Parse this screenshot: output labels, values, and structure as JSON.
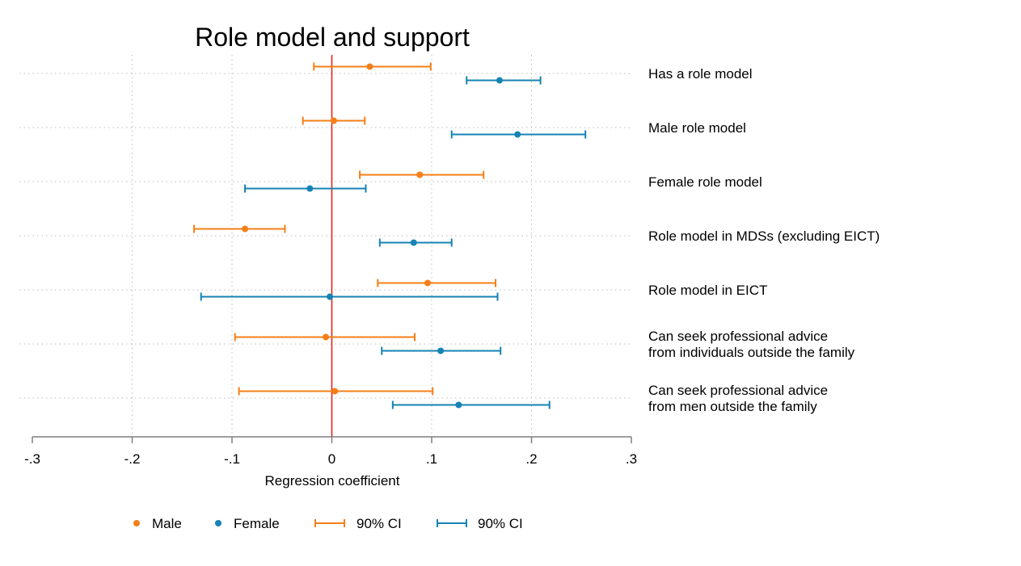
{
  "chart_data": {
    "type": "coefficient_plot",
    "title": "Role model and support",
    "xlabel": "Regression coefficient",
    "xlim": [
      -0.3,
      0.3
    ],
    "xticks": [
      -0.3,
      -0.2,
      -0.1,
      0,
      0.1,
      0.2,
      0.3
    ],
    "xtick_labels": [
      "-.3",
      "-.2",
      "-.1",
      "0",
      ".1",
      ".2",
      ".3"
    ],
    "reference_line": {
      "x": 0,
      "color": "#e8190e"
    },
    "grid": true,
    "legend_position": "bottom",
    "categories": [
      [
        "Has a role model"
      ],
      [
        "Male role model"
      ],
      [
        "Female role model"
      ],
      [
        "Role model in MDSs (excluding EICT)"
      ],
      [
        "Role model in EICT"
      ],
      [
        "Can seek professional advice",
        "from individuals outside the family"
      ],
      [
        "Can seek professional advice",
        "from men outside the family"
      ]
    ],
    "series": [
      {
        "name": "Male",
        "color": "#f57f17",
        "ci_label": "90% CI",
        "estimates": [
          0.038,
          0.002,
          0.088,
          -0.087,
          0.096,
          -0.006,
          0.003
        ],
        "ci_low": [
          -0.018,
          -0.029,
          0.028,
          -0.138,
          0.046,
          -0.097,
          -0.093
        ],
        "ci_high": [
          0.099,
          0.033,
          0.152,
          -0.047,
          0.164,
          0.083,
          0.101
        ]
      },
      {
        "name": "Female",
        "color": "#1683b4",
        "ci_label": "90% CI",
        "estimates": [
          0.168,
          0.186,
          -0.022,
          0.082,
          -0.002,
          0.109,
          0.127
        ],
        "ci_low": [
          0.135,
          0.12,
          -0.087,
          0.048,
          -0.131,
          0.05,
          0.061
        ],
        "ci_high": [
          0.209,
          0.254,
          0.034,
          0.12,
          0.166,
          0.169,
          0.218
        ]
      }
    ]
  }
}
